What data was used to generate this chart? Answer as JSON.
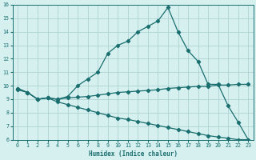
{
  "xlabel": "Humidex (Indice chaleur)",
  "bg_color": "#d6f0f0",
  "grid_color": "#aed4d4",
  "line_color": "#1a6e6e",
  "xlim": [
    -0.5,
    23.5
  ],
  "ylim": [
    6,
    16
  ],
  "yticks": [
    6,
    7,
    8,
    9,
    10,
    11,
    12,
    13,
    14,
    15,
    16
  ],
  "xticks": [
    0,
    1,
    2,
    3,
    4,
    5,
    6,
    7,
    8,
    9,
    10,
    11,
    12,
    13,
    14,
    15,
    16,
    17,
    18,
    19,
    20,
    21,
    22,
    23
  ],
  "line1_x": [
    0,
    1,
    2,
    3,
    4,
    5,
    6,
    7,
    8,
    9,
    10,
    11,
    12,
    13,
    14,
    15,
    16,
    17,
    18,
    19,
    20,
    21,
    22,
    23
  ],
  "line1_y": [
    9.7,
    9.5,
    9.0,
    9.1,
    9.0,
    9.2,
    10.0,
    10.5,
    11.0,
    12.4,
    13.0,
    13.3,
    14.0,
    14.4,
    14.8,
    15.8,
    14.0,
    12.6,
    11.8,
    10.1,
    10.1,
    8.5,
    7.3,
    6.0
  ],
  "line2_x": [
    0,
    1,
    2,
    3,
    4,
    5,
    6,
    7,
    8,
    9,
    10,
    11,
    12,
    13,
    14,
    15,
    16,
    17,
    18,
    19,
    20,
    21,
    22,
    23
  ],
  "line2_y": [
    9.8,
    9.5,
    9.0,
    9.1,
    9.0,
    9.1,
    9.15,
    9.2,
    9.3,
    9.4,
    9.5,
    9.55,
    9.6,
    9.65,
    9.7,
    9.8,
    9.85,
    9.9,
    9.95,
    9.95,
    10.05,
    10.05,
    10.1,
    10.1
  ],
  "line3_x": [
    0,
    1,
    2,
    3,
    4,
    5,
    6,
    7,
    8,
    9,
    10,
    11,
    12,
    13,
    14,
    15,
    16,
    17,
    18,
    19,
    20,
    21,
    22,
    23
  ],
  "line3_y": [
    9.8,
    9.5,
    9.0,
    9.1,
    8.8,
    8.6,
    8.4,
    8.2,
    8.0,
    7.8,
    7.6,
    7.5,
    7.35,
    7.2,
    7.05,
    6.9,
    6.75,
    6.6,
    6.45,
    6.3,
    6.2,
    6.1,
    6.0,
    6.0
  ]
}
